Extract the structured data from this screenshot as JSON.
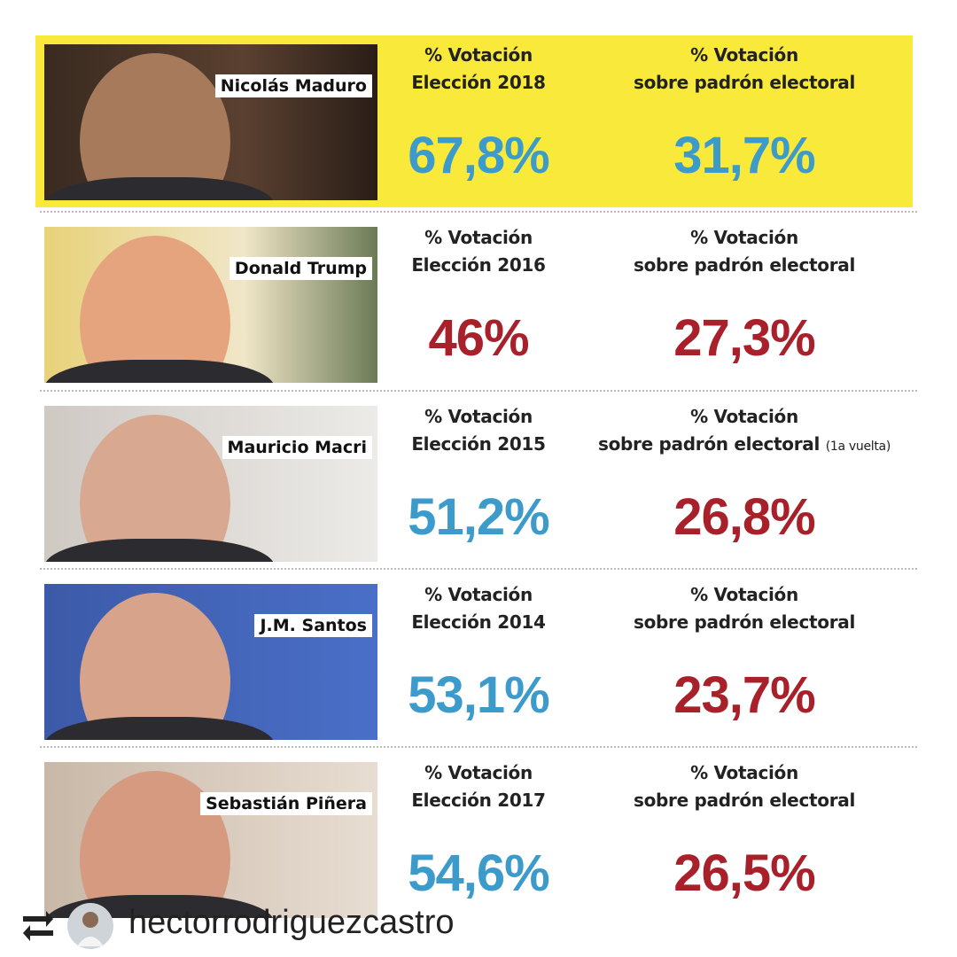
{
  "rows": [
    {
      "name": "Nicolás Maduro",
      "vote_label": [
        "% Votación",
        "Elección 2018"
      ],
      "vote": "67,8%",
      "vote_color": "#3d9bcb",
      "roll_label": [
        "% Votación",
        "sobre padrón electoral"
      ],
      "roll": "31,7%",
      "roll_color": "#3d9bcb",
      "highlight": "#f8e93b"
    },
    {
      "name": "Donald Trump",
      "vote_label": [
        "% Votación",
        "Elección 2016"
      ],
      "vote": "46%",
      "vote_color": "#a8202a",
      "roll_label": [
        "% Votación",
        "sobre padrón electoral"
      ],
      "roll": "27,3%",
      "roll_color": "#a8202a"
    },
    {
      "name": "Mauricio Macri",
      "vote_label": [
        "% Votación",
        "Elección 2015"
      ],
      "vote": "51,2%",
      "vote_color": "#3d9bcb",
      "roll_label": [
        "% Votación",
        "sobre padrón electoral"
      ],
      "roll_note": "(1a vuelta)",
      "roll": "26,8%",
      "roll_color": "#a8202a"
    },
    {
      "name": "J.M. Santos",
      "vote_label": [
        "% Votación",
        "Elección 2014"
      ],
      "vote": "53,1%",
      "vote_color": "#3d9bcb",
      "roll_label": [
        "% Votación",
        "sobre padrón electoral"
      ],
      "roll": "23,7%",
      "roll_color": "#a8202a"
    },
    {
      "name": "Sebastián Piñera",
      "vote_label": [
        "% Votación",
        "Elección 2017"
      ],
      "vote": "54,6%",
      "vote_color": "#3d9bcb",
      "roll_label": [
        "% Votación",
        "sobre padrón electoral"
      ],
      "roll": "26,5%",
      "roll_color": "#a8202a"
    }
  ],
  "footer": {
    "username": "hectorrodriguezcastro"
  }
}
